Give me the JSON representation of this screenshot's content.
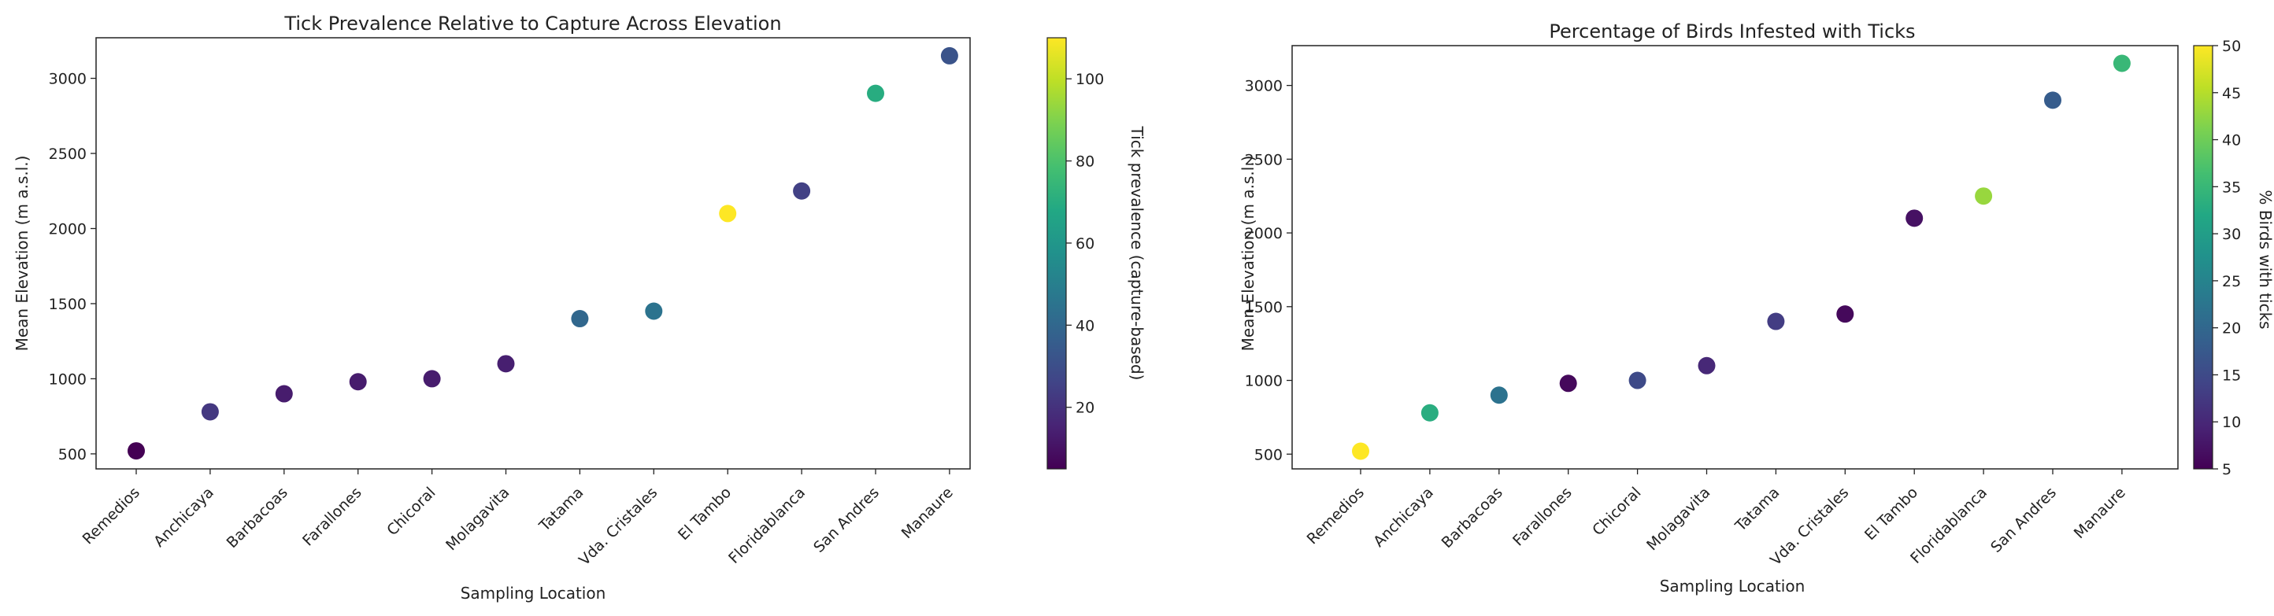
{
  "chart_data": [
    {
      "type": "scatter",
      "title": "Tick Prevalence Relative to Capture Across Elevation",
      "xlabel": "Sampling Location",
      "ylabel": "Mean Elevation (m a.s.l.)",
      "categories": [
        "Remedios",
        "Anchicaya",
        "Barbacoas",
        "Farallones",
        "Chicoral",
        "Molagavita",
        "Tatama",
        "Vda. Cristales",
        "El Tambo",
        "Floridablanca",
        "San Andres",
        "Manaure"
      ],
      "y": [
        520,
        780,
        900,
        980,
        1000,
        1100,
        1400,
        1450,
        2100,
        2250,
        2900,
        3150
      ],
      "color_values": [
        5,
        22,
        13,
        13,
        13,
        14,
        40,
        45,
        110,
        25,
        70,
        32
      ],
      "ylim": [
        400,
        3270
      ],
      "yticks": [
        500,
        1000,
        1500,
        2000,
        2500,
        3000
      ],
      "colorbar": {
        "label": "Tick prevalence (capture-based)",
        "min": 5,
        "max": 110,
        "ticks": [
          20,
          40,
          60,
          80,
          100
        ],
        "colormap": "viridis"
      },
      "grid": false
    },
    {
      "type": "scatter",
      "title": "Percentage of Birds Infested with Ticks",
      "xlabel": "Sampling Location",
      "ylabel": "Mean Elevation (m a.s.l.)",
      "categories": [
        "Remedios",
        "Anchicaya",
        "Barbacoas",
        "Farallones",
        "Chicoral",
        "Molagavita",
        "Tatama",
        "Vda. Cristales",
        "El Tambo",
        "Floridablanca",
        "San Andres",
        "Manaure"
      ],
      "y": [
        520,
        780,
        900,
        980,
        1000,
        1100,
        1400,
        1450,
        2100,
        2250,
        2900,
        3150
      ],
      "color_values": [
        50,
        33,
        22,
        6,
        15,
        10,
        13,
        6,
        7,
        43,
        18,
        35
      ],
      "ylim": [
        400,
        3270
      ],
      "yticks": [
        500,
        1000,
        1500,
        2000,
        2500,
        3000
      ],
      "colorbar": {
        "label": "% Birds with ticks",
        "min": 5,
        "max": 50,
        "ticks": [
          5,
          10,
          15,
          20,
          25,
          30,
          35,
          40,
          45,
          50
        ],
        "colormap": "viridis"
      },
      "grid": false
    }
  ]
}
